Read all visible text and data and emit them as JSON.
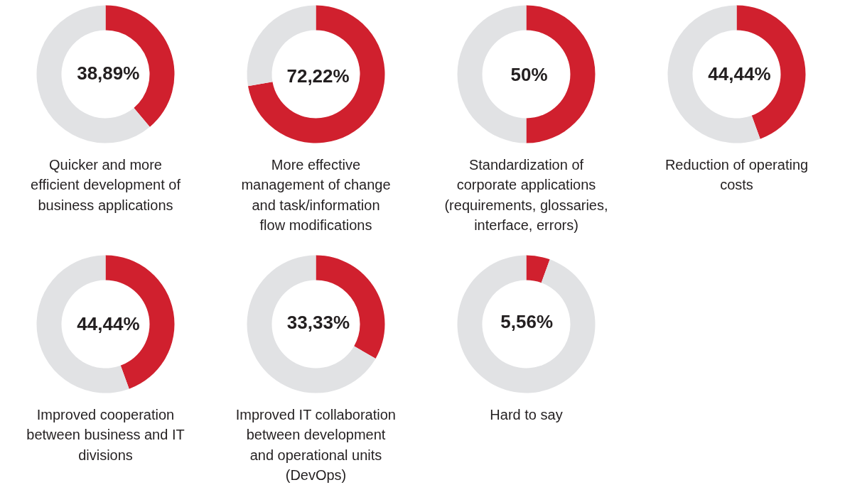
{
  "chart_data": [
    {
      "type": "donut",
      "title": "Quicker and more\nefficient development of\nbusiness applications",
      "categories": [
        null,
        null
      ],
      "values": [
        38.89,
        61.11
      ],
      "colors": [
        "#d0202e",
        "#e1e2e4"
      ],
      "value_labels": [
        "38,89%",
        null
      ]
    },
    {
      "type": "donut",
      "title": "More effective\nmanagement of change\nand task/information\nflow modifications",
      "categories": [
        null,
        null
      ],
      "values": [
        72.22,
        27.78
      ],
      "colors": [
        "#d0202e",
        "#e1e2e4"
      ],
      "value_labels": [
        "72,22%",
        null
      ]
    },
    {
      "type": "donut",
      "title": "Standardization of\ncorporate applications\n(requirements, glossaries,\ninterface, errors)",
      "categories": [
        null,
        null
      ],
      "values": [
        50,
        50
      ],
      "colors": [
        "#d0202e",
        "#e1e2e4"
      ],
      "value_labels": [
        "50%",
        null
      ]
    },
    {
      "type": "donut",
      "title": "Reduction of operating\ncosts",
      "categories": [
        null,
        null
      ],
      "values": [
        44.44,
        55.56
      ],
      "colors": [
        "#d0202e",
        "#e1e2e4"
      ],
      "value_labels": [
        "44,44%",
        null
      ]
    },
    {
      "type": "donut",
      "title": "Improved cooperation\nbetween business and IT\ndivisions",
      "categories": [
        null,
        null
      ],
      "values": [
        44.44,
        55.56
      ],
      "colors": [
        "#d0202e",
        "#e1e2e4"
      ],
      "value_labels": [
        "44,44%",
        null
      ]
    },
    {
      "type": "donut",
      "title": "Improved IT collaboration\nbetween development\nand operational units\n(DevOps)",
      "categories": [
        null,
        null
      ],
      "values": [
        33.33,
        66.67
      ],
      "colors": [
        "#d0202e",
        "#e1e2e4"
      ],
      "value_labels": [
        "33,33%",
        null
      ]
    },
    {
      "type": "donut",
      "title": "Hard to say",
      "categories": [
        null,
        null
      ],
      "values": [
        5.56,
        94.44
      ],
      "colors": [
        "#d0202e",
        "#e1e2e4"
      ],
      "value_labels": [
        "5,56%",
        null
      ]
    }
  ]
}
